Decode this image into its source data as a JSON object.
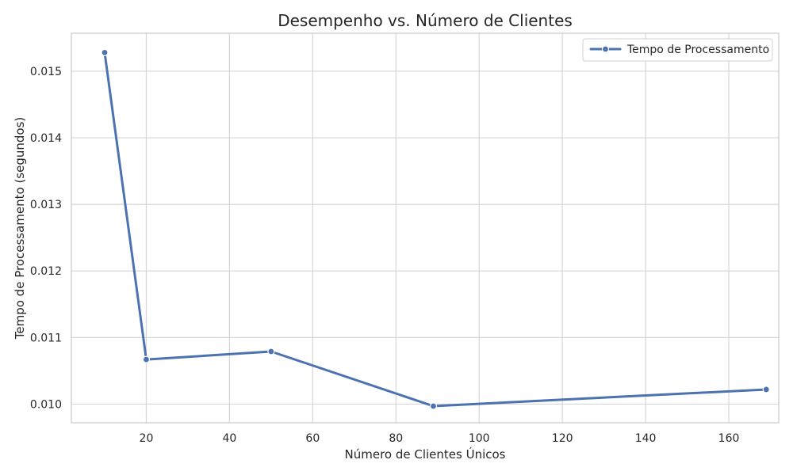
{
  "chart_data": {
    "type": "line",
    "title": "Desempenho vs. Número de Clientes",
    "xlabel": "Número de Clientes Únicos",
    "ylabel": "Tempo de Processamento (segundos)",
    "xlim": [
      2,
      172
    ],
    "ylim": [
      0.00972,
      0.01557
    ],
    "xticks": [
      20,
      40,
      60,
      80,
      100,
      120,
      140,
      160
    ],
    "yticks": [
      0.01,
      0.011,
      0.012,
      0.013,
      0.014,
      0.015
    ],
    "xtick_labels": [
      "20",
      "40",
      "60",
      "80",
      "100",
      "120",
      "140",
      "160"
    ],
    "ytick_labels": [
      "0.010",
      "0.011",
      "0.012",
      "0.013",
      "0.014",
      "0.015"
    ],
    "grid": true,
    "legend_position": "top-right",
    "series": [
      {
        "name": "Tempo de Processamento",
        "color": "#4C72B0",
        "marker": "circle",
        "x": [
          10,
          20,
          50,
          89,
          169
        ],
        "y": [
          0.01528,
          0.01067,
          0.01079,
          0.00997,
          0.01022
        ]
      }
    ]
  }
}
